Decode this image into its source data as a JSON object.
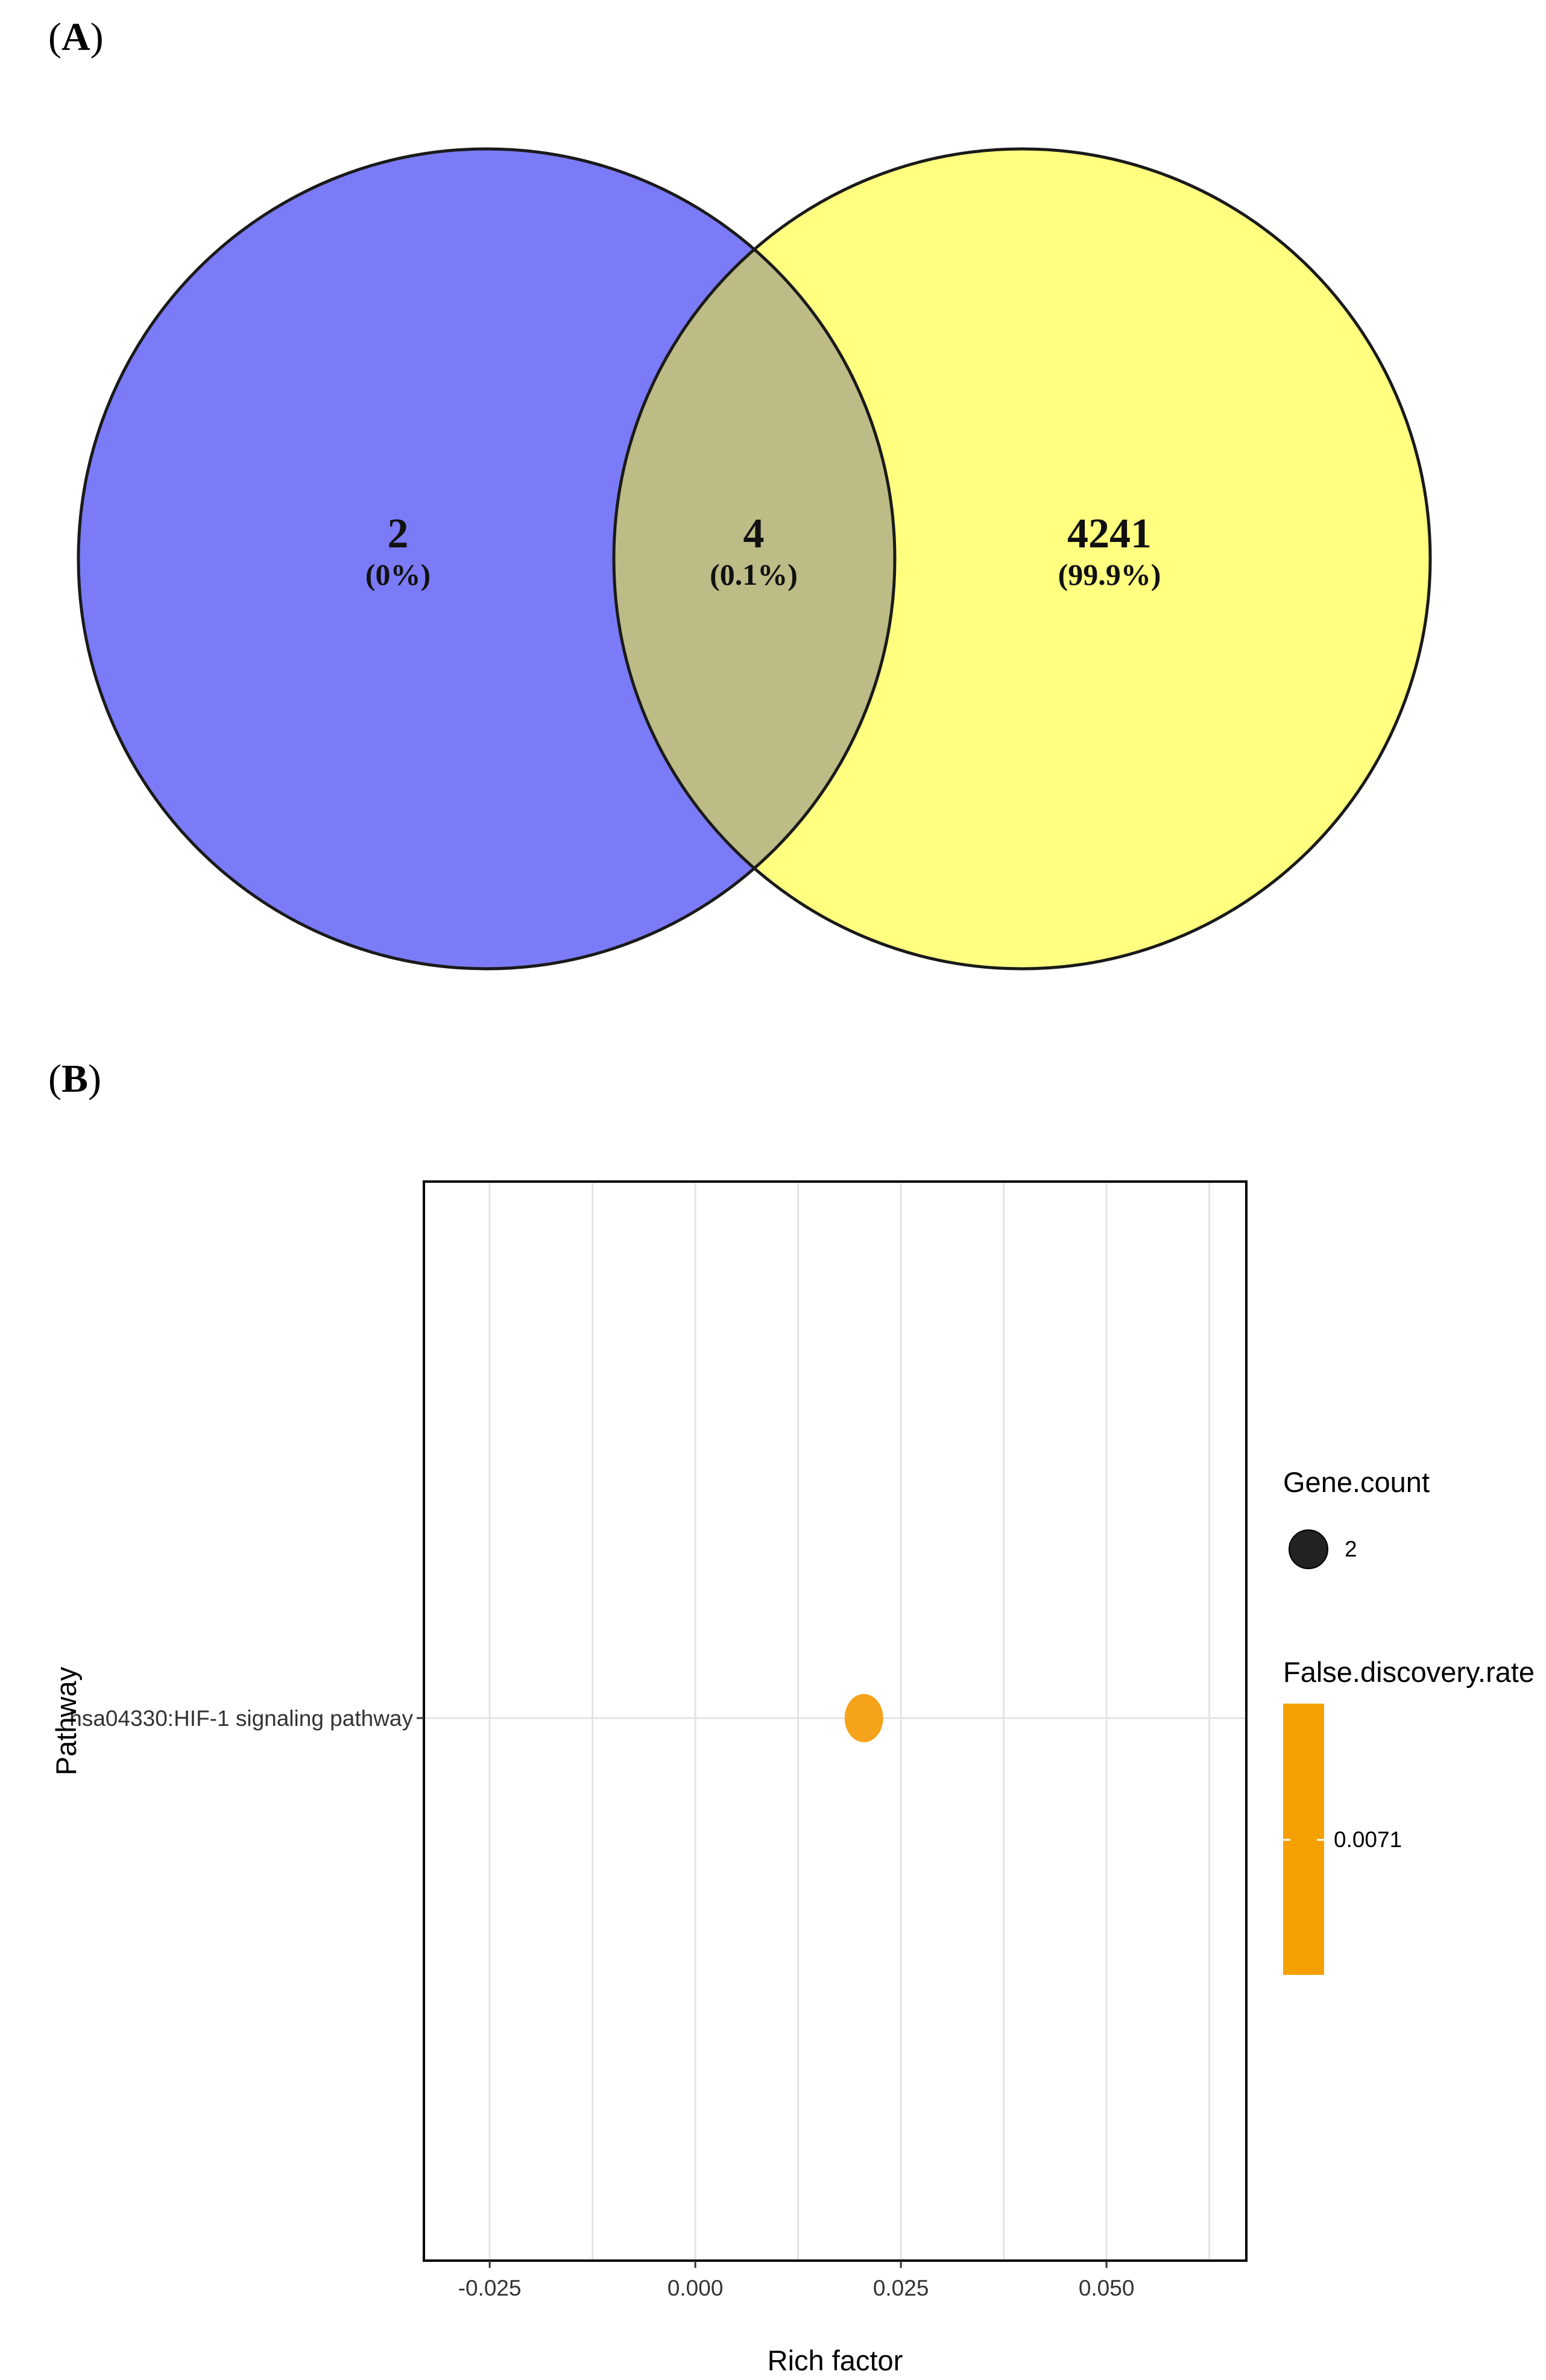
{
  "panels": {
    "a_label": "A",
    "b_label": "B"
  },
  "colors": {
    "venn_left": "#7b7bf7",
    "venn_right": "#ffff80",
    "venn_overlap": "#bdbb86",
    "point": "#f5a31a",
    "fdr_bar": "#f5a000"
  },
  "chart_data": [
    {
      "type": "venn",
      "sets": [
        {
          "region": "left_only",
          "count": "2",
          "percent": "(0%)"
        },
        {
          "region": "intersection",
          "count": "4",
          "percent": "(0.1%)"
        },
        {
          "region": "right_only",
          "count": "4241",
          "percent": "(99.9%)"
        }
      ]
    },
    {
      "type": "scatter",
      "xlabel": "Rich factor",
      "ylabel": "Pathway",
      "xlim": [
        -0.033,
        0.067
      ],
      "x_ticks": [
        -0.025,
        0.0,
        0.025,
        0.05
      ],
      "x_tick_labels": [
        "-0.025",
        "0.000",
        "0.025",
        "0.050"
      ],
      "categories": [
        "hsa04330:HIF-1 signaling pathway"
      ],
      "points": [
        {
          "pathway": "hsa04330:HIF-1 signaling pathway",
          "rich_factor": 0.0205,
          "gene_count": 2,
          "fdr": 0.0071
        }
      ],
      "grid": true,
      "legend": {
        "placement": "right",
        "size_title": "Gene.count",
        "size_entries": [
          "2"
        ],
        "color_title": "False.discovery.rate",
        "color_entries": [
          "0.0071"
        ]
      }
    }
  ]
}
